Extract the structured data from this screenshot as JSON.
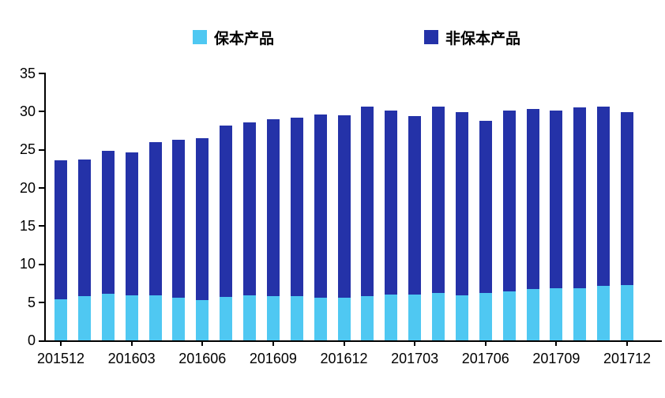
{
  "chart_data": {
    "type": "bar",
    "stacked": true,
    "title": "",
    "xlabel": "",
    "ylabel": "",
    "ylim": [
      0,
      35
    ],
    "y_ticks": [
      0,
      5,
      10,
      15,
      20,
      25,
      30,
      35
    ],
    "grid": false,
    "legend_position": "top",
    "categories": [
      "201512",
      "201601",
      "201602",
      "201603",
      "201604",
      "201605",
      "201606",
      "201607",
      "201608",
      "201609",
      "201610",
      "201611",
      "201612",
      "201701",
      "201702",
      "201703",
      "201704",
      "201705",
      "201706",
      "201707",
      "201708",
      "201709",
      "201710",
      "201711",
      "201712"
    ],
    "x_tick_labels": [
      "201512",
      "201603",
      "201606",
      "201609",
      "201612",
      "201703",
      "201706",
      "201709",
      "201712"
    ],
    "series": [
      {
        "name": "保本产品",
        "color": "#4FC8F2",
        "values": [
          5.4,
          5.8,
          6.1,
          5.9,
          5.9,
          5.6,
          5.3,
          5.7,
          5.9,
          5.8,
          5.8,
          5.6,
          5.6,
          5.8,
          6.0,
          6.0,
          6.2,
          5.9,
          6.2,
          6.4,
          6.7,
          6.8,
          6.8,
          7.1,
          7.2
        ]
      },
      {
        "name": "非保本产品",
        "color": "#2432A8",
        "values": [
          18.2,
          17.9,
          18.7,
          18.7,
          20.1,
          20.7,
          21.2,
          22.4,
          22.6,
          23.2,
          23.4,
          24.0,
          23.9,
          24.8,
          24.1,
          23.4,
          24.4,
          24.0,
          22.5,
          23.7,
          23.6,
          23.3,
          23.7,
          23.5,
          22.7
        ]
      }
    ],
    "totals": [
      23.6,
      23.7,
      24.8,
      24.6,
      26.0,
      26.3,
      26.5,
      28.1,
      28.5,
      29.0,
      29.2,
      29.6,
      29.5,
      30.6,
      30.1,
      29.4,
      30.6,
      29.9,
      28.7,
      30.1,
      30.3,
      30.1,
      30.5,
      30.6,
      29.9
    ]
  },
  "legend": {
    "items": [
      {
        "label": "保本产品",
        "color": "#4FC8F2"
      },
      {
        "label": "非保本产品",
        "color": "#2432A8"
      }
    ]
  }
}
